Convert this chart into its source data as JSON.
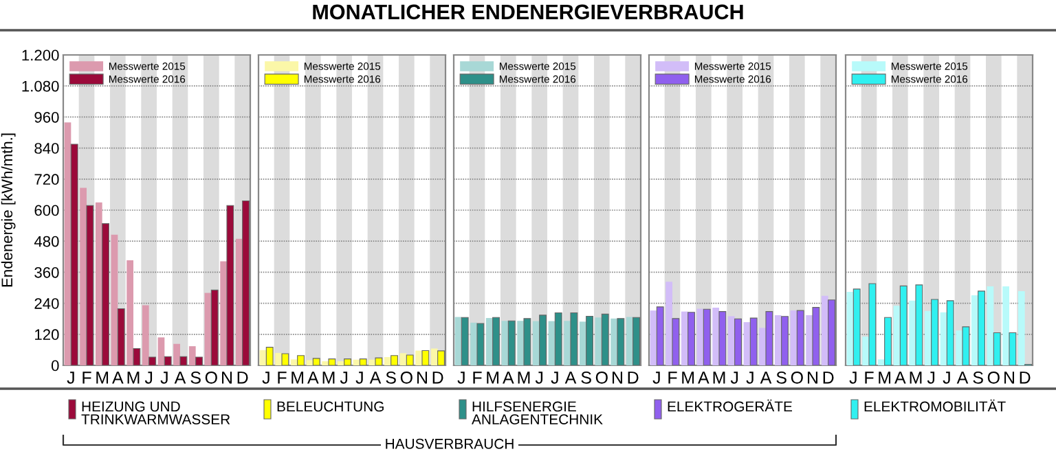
{
  "chart_data": [
    {
      "type": "bar",
      "ylabel": "Endenergie [kWh/mth.]",
      "xlabel": "HEIZUNG UND\nTRINKWARMWASSER",
      "categories": [
        "J",
        "F",
        "M",
        "A",
        "M",
        "J",
        "J",
        "A",
        "S",
        "O",
        "N",
        "D"
      ],
      "series": [
        {
          "name": "Messwerte 2015",
          "color": "#dc9aae",
          "values": [
            939,
            686,
            630,
            505,
            406,
            232,
            108,
            83,
            74,
            280,
            402,
            489
          ]
        },
        {
          "name": "Messwerte 2016",
          "color": "#9b0a3a",
          "values": [
            855,
            618,
            548,
            219,
            65,
            32,
            34,
            34,
            32,
            291,
            618,
            636
          ]
        }
      ],
      "ylim": [
        0,
        1200
      ],
      "yticks": [
        0,
        120,
        240,
        360,
        480,
        600,
        720,
        840,
        960,
        {
          "value": 1080,
          "label": "1.080"
        },
        {
          "value": 1200,
          "label": "1.200"
        }
      ],
      "grid": "y",
      "legend": "top left"
    },
    {
      "type": "bar",
      "xlabel": "BELEUCHTUNG",
      "categories": [
        "J",
        "F",
        "M",
        "A",
        "M",
        "J",
        "J",
        "A",
        "S",
        "O",
        "N",
        "D"
      ],
      "series": [
        {
          "name": "Messwerte 2015",
          "color": "#fbf7a8",
          "values": [
            59,
            48,
            23,
            20,
            16,
            16,
            22,
            22,
            32,
            47,
            57,
            65
          ]
        },
        {
          "name": "Messwerte 2016",
          "color": "#ffff00",
          "values": [
            70,
            45,
            38,
            27,
            25,
            25,
            25,
            29,
            38,
            40,
            57,
            56
          ]
        }
      ],
      "ylim": [
        0,
        1200
      ],
      "yticks": [
        0,
        120,
        240,
        360,
        480,
        600,
        720,
        840,
        960,
        1080,
        1200
      ],
      "grid": "y",
      "legend": "top left",
      "tick_labels": "x"
    },
    {
      "type": "bar",
      "title": "MONATLICHER ENDENERGIEVERBRAUCH",
      "annotations": [
        "HAUSVERBRAUCH"
      ],
      "xlabel": "HILFSENERGIE\nANLAGENTECHNIK",
      "categories": [
        "J",
        "F",
        "M",
        "A",
        "M",
        "J",
        "J",
        "A",
        "S",
        "O",
        "N",
        "D"
      ],
      "series": [
        {
          "name": "Messwerte 2015",
          "color": "#a8d8d6",
          "values": [
            187,
            165,
            183,
            172,
            172,
            171,
            171,
            172,
            169,
            185,
            181,
            187
          ]
        },
        {
          "name": "Messwerte 2016",
          "color": "#2e9089",
          "values": [
            185,
            162,
            185,
            172,
            181,
            194,
            203,
            203,
            190,
            198,
            181,
            185
          ]
        }
      ],
      "ylim": [
        0,
        1200
      ],
      "yticks": [
        0,
        120,
        240,
        360,
        480,
        600,
        720,
        840,
        960,
        1080,
        1200
      ],
      "grid": "y",
      "legend": "top left",
      "tick_labels": "x"
    },
    {
      "type": "bar",
      "xlabel": "ELEKTROGERÄTE",
      "categories": [
        "J",
        "F",
        "M",
        "A",
        "M",
        "J",
        "J",
        "A",
        "S",
        "O",
        "N",
        "D"
      ],
      "series": [
        {
          "name": "Messwerte 2015",
          "color": "#d2bdf8",
          "values": [
            212,
            323,
            208,
            219,
            223,
            190,
            167,
            145,
            194,
            212,
            194,
            269
          ]
        },
        {
          "name": "Messwerte 2016",
          "color": "#9060ee",
          "values": [
            226,
            181,
            205,
            217,
            208,
            180,
            183,
            208,
            189,
            212,
            224,
            253
          ]
        }
      ],
      "ylim": [
        0,
        1200
      ],
      "yticks": [
        0,
        120,
        240,
        360,
        480,
        600,
        720,
        840,
        960,
        1080,
        1200
      ],
      "grid": "y",
      "legend": "top left",
      "tick_labels": "x"
    },
    {
      "type": "bar",
      "xlabel": "ELEKTROMOBILITÄT",
      "categories": [
        "J",
        "F",
        "M",
        "A",
        "M",
        "J",
        "J",
        "A",
        "S",
        "O",
        "N",
        "D"
      ],
      "series": [
        {
          "name": "Messwerte 2015",
          "color": "#b8fafa",
          "values": [
            284,
            111,
            23,
            230,
            250,
            210,
            205,
            135,
            271,
            305,
            305,
            287
          ]
        },
        {
          "name": "Messwerte 2016",
          "color": "#30f0f0",
          "values": [
            295,
            316,
            185,
            307,
            311,
            255,
            250,
            149,
            287,
            126,
            126,
            4
          ]
        }
      ],
      "ylim": [
        0,
        1200
      ],
      "yticks": [
        0,
        120,
        240,
        360,
        480,
        600,
        720,
        840,
        960,
        1080,
        1200
      ],
      "grid": "y",
      "legend": "top left",
      "tick_labels": "x"
    }
  ]
}
